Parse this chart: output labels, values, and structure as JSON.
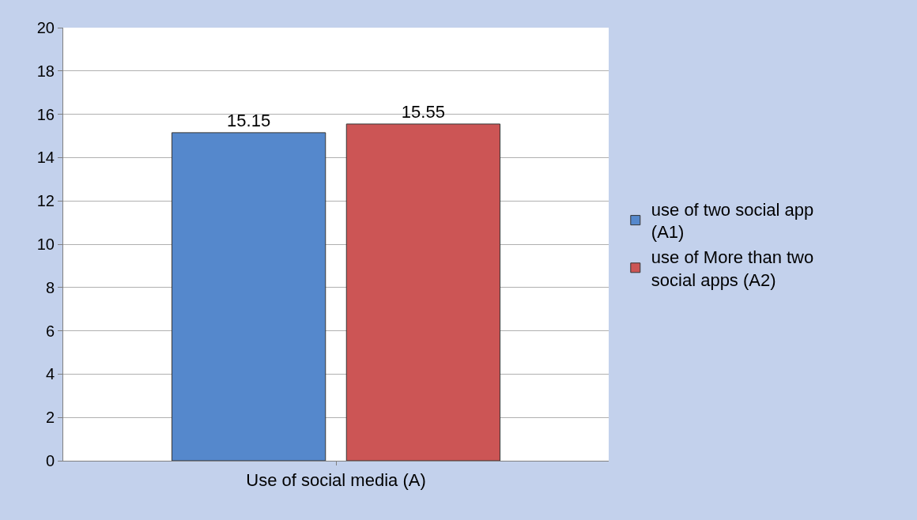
{
  "chart_data": {
    "type": "bar",
    "categories": [
      "Use of social media (A)"
    ],
    "series": [
      {
        "name": "use of two social app (A1)",
        "color": "#5588cc",
        "values": [
          15.15
        ]
      },
      {
        "name": "use of More than two social apps (A2)",
        "color": "#cc5555",
        "values": [
          15.55
        ]
      }
    ],
    "ylim": [
      0,
      20
    ],
    "yticks": [
      0,
      2,
      4,
      6,
      8,
      10,
      12,
      14,
      16,
      18,
      20
    ],
    "grid": "y",
    "legend": "right",
    "data_labels": true
  }
}
